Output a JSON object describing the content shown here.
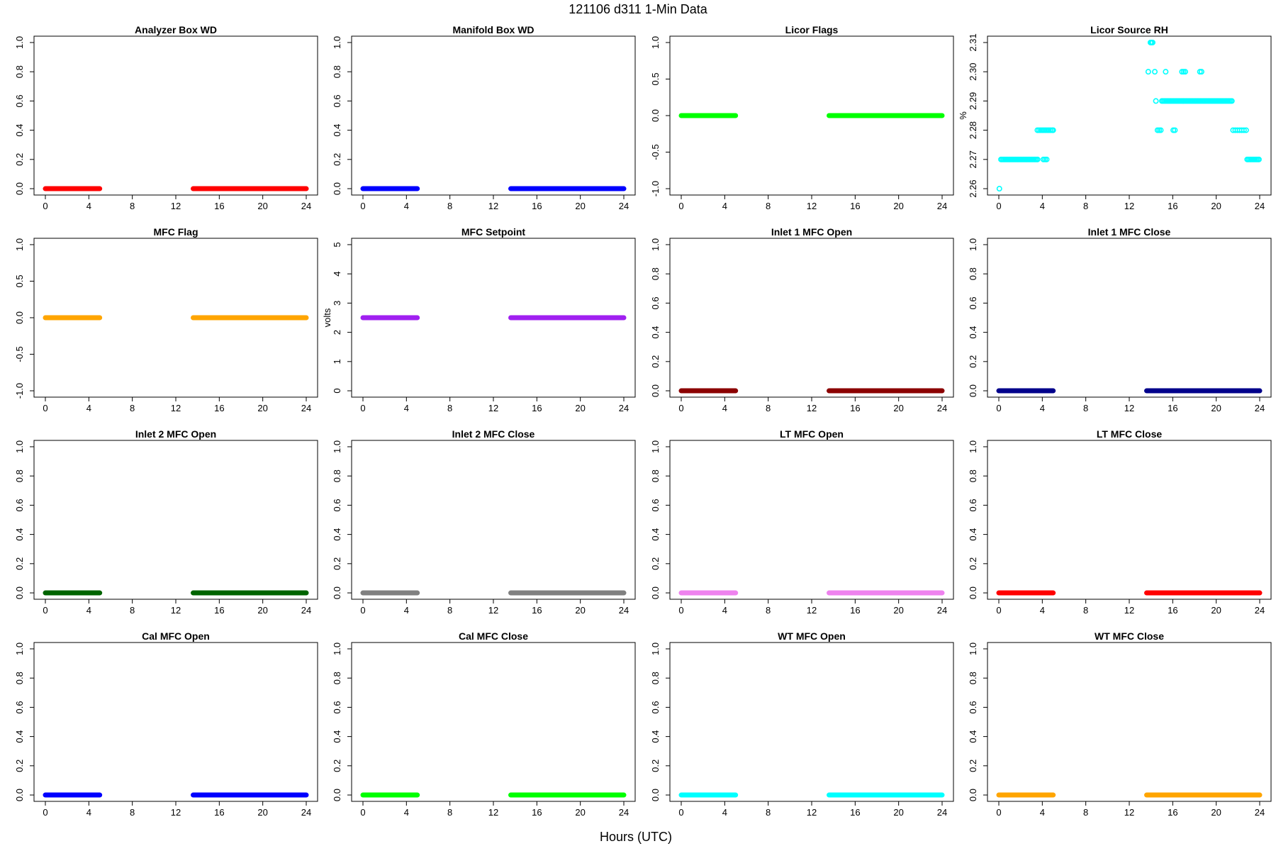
{
  "figure": {
    "title": "121106   d311   1-Min Data",
    "xlabel": "Hours (UTC)"
  },
  "chart_data": [
    {
      "type": "scatter",
      "title": "Analyzer Box WD",
      "ylabel": "",
      "color": "#ff0000",
      "ylim": [
        0,
        1
      ],
      "yticks": [
        "0.0",
        "0.2",
        "0.4",
        "0.6",
        "0.8",
        "1.0"
      ],
      "xlim": [
        0,
        24
      ],
      "xticks": [
        "0",
        "4",
        "8",
        "12",
        "16",
        "20",
        "24"
      ],
      "segments": [
        {
          "x": [
            0,
            5
          ],
          "y": 0
        },
        {
          "x": [
            13.6,
            24
          ],
          "y": 0
        }
      ]
    },
    {
      "type": "scatter",
      "title": "Manifold Box WD",
      "ylabel": "",
      "color": "#0000ff",
      "ylim": [
        0,
        1
      ],
      "yticks": [
        "0.0",
        "0.2",
        "0.4",
        "0.6",
        "0.8",
        "1.0"
      ],
      "xlim": [
        0,
        24
      ],
      "xticks": [
        "0",
        "4",
        "8",
        "12",
        "16",
        "20",
        "24"
      ],
      "segments": [
        {
          "x": [
            0,
            5
          ],
          "y": 0
        },
        {
          "x": [
            13.6,
            24
          ],
          "y": 0
        }
      ]
    },
    {
      "type": "scatter",
      "title": "Licor Flags",
      "ylabel": "",
      "color": "#00ff00",
      "ylim": [
        -1,
        1
      ],
      "yticks": [
        "-1.0",
        "-0.5",
        "0.0",
        "0.5",
        "1.0"
      ],
      "xlim": [
        0,
        24
      ],
      "xticks": [
        "0",
        "4",
        "8",
        "12",
        "16",
        "20",
        "24"
      ],
      "segments": [
        {
          "x": [
            0,
            5
          ],
          "y": 0
        },
        {
          "x": [
            13.6,
            24
          ],
          "y": 0
        }
      ]
    },
    {
      "type": "scatter",
      "title": "Licor Source RH",
      "ylabel": "%",
      "color": "#00ffff",
      "ylim": [
        2.26,
        2.31
      ],
      "yticks": [
        "2.26",
        "2.27",
        "2.28",
        "2.29",
        "2.30",
        "2.31"
      ],
      "xlim": [
        0,
        24
      ],
      "xticks": [
        "0",
        "4",
        "8",
        "12",
        "16",
        "20",
        "24"
      ],
      "points": [
        {
          "x": 0.05,
          "y": 2.26
        },
        {
          "x": 3.55,
          "y": 2.28
        },
        {
          "x": 3.7,
          "y": 2.28
        },
        {
          "x": 3.85,
          "y": 2.28
        },
        {
          "x": 4.0,
          "y": 2.28
        },
        {
          "x": 4.15,
          "y": 2.28
        },
        {
          "x": 4.3,
          "y": 2.28
        },
        {
          "x": 4.45,
          "y": 2.28
        },
        {
          "x": 4.6,
          "y": 2.28
        },
        {
          "x": 4.75,
          "y": 2.28
        },
        {
          "x": 4.9,
          "y": 2.28
        },
        {
          "x": 5.0,
          "y": 2.28
        },
        {
          "x": 4.1,
          "y": 2.27
        },
        {
          "x": 4.25,
          "y": 2.27
        },
        {
          "x": 4.4,
          "y": 2.27
        },
        {
          "x": 13.75,
          "y": 2.3
        },
        {
          "x": 13.95,
          "y": 2.31
        },
        {
          "x": 14.05,
          "y": 2.31
        },
        {
          "x": 14.15,
          "y": 2.31
        },
        {
          "x": 14.35,
          "y": 2.3
        },
        {
          "x": 14.45,
          "y": 2.29
        },
        {
          "x": 14.6,
          "y": 2.28
        },
        {
          "x": 14.75,
          "y": 2.28
        },
        {
          "x": 14.9,
          "y": 2.28
        },
        {
          "x": 15.35,
          "y": 2.3
        },
        {
          "x": 16.05,
          "y": 2.28
        },
        {
          "x": 16.2,
          "y": 2.28
        },
        {
          "x": 16.85,
          "y": 2.3
        },
        {
          "x": 17.0,
          "y": 2.3
        },
        {
          "x": 17.15,
          "y": 2.3
        },
        {
          "x": 18.5,
          "y": 2.3
        },
        {
          "x": 18.65,
          "y": 2.3
        },
        {
          "x": 21.55,
          "y": 2.28
        },
        {
          "x": 21.75,
          "y": 2.28
        },
        {
          "x": 21.95,
          "y": 2.28
        },
        {
          "x": 22.15,
          "y": 2.28
        },
        {
          "x": 22.35,
          "y": 2.28
        },
        {
          "x": 22.55,
          "y": 2.28
        },
        {
          "x": 22.75,
          "y": 2.28
        }
      ],
      "runs": [
        {
          "x": [
            0.2,
            3.6
          ],
          "y": 2.27
        },
        {
          "x": 15.0,
          "y": 2.29,
          "x_end": 17.0
        },
        {
          "x": 17.0,
          "y": 2.29,
          "x_end": 21.5
        },
        {
          "x": 22.85,
          "y": 2.27,
          "x_end": 24
        }
      ]
    },
    {
      "type": "scatter",
      "title": "MFC Flag",
      "ylabel": "",
      "color": "#ffa500",
      "ylim": [
        -1,
        1
      ],
      "yticks": [
        "-1.0",
        "-0.5",
        "0.0",
        "0.5",
        "1.0"
      ],
      "xlim": [
        0,
        24
      ],
      "xticks": [
        "0",
        "4",
        "8",
        "12",
        "16",
        "20",
        "24"
      ],
      "segments": [
        {
          "x": [
            0,
            5
          ],
          "y": 0
        },
        {
          "x": [
            13.6,
            24
          ],
          "y": 0
        }
      ]
    },
    {
      "type": "scatter",
      "title": "MFC Setpoint",
      "ylabel": "volts",
      "color": "#a020f0",
      "ylim": [
        0,
        5
      ],
      "yticks": [
        "0",
        "1",
        "2",
        "3",
        "4",
        "5"
      ],
      "xlim": [
        0,
        24
      ],
      "xticks": [
        "0",
        "4",
        "8",
        "12",
        "16",
        "20",
        "24"
      ],
      "segments": [
        {
          "x": [
            0,
            5
          ],
          "y": 2.5
        },
        {
          "x": [
            13.6,
            24
          ],
          "y": 2.5
        }
      ]
    },
    {
      "type": "scatter",
      "title": "Inlet 1 MFC Open",
      "ylabel": "",
      "color": "#8b0000",
      "ylim": [
        0,
        1
      ],
      "yticks": [
        "0.0",
        "0.2",
        "0.4",
        "0.6",
        "0.8",
        "1.0"
      ],
      "xlim": [
        0,
        24
      ],
      "xticks": [
        "0",
        "4",
        "8",
        "12",
        "16",
        "20",
        "24"
      ],
      "segments": [
        {
          "x": [
            0,
            5
          ],
          "y": 0
        },
        {
          "x": [
            13.6,
            24
          ],
          "y": 0
        }
      ]
    },
    {
      "type": "scatter",
      "title": "Inlet 1 MFC Close",
      "ylabel": "",
      "color": "#00008b",
      "ylim": [
        0,
        1
      ],
      "yticks": [
        "0.0",
        "0.2",
        "0.4",
        "0.6",
        "0.8",
        "1.0"
      ],
      "xlim": [
        0,
        24
      ],
      "xticks": [
        "0",
        "4",
        "8",
        "12",
        "16",
        "20",
        "24"
      ],
      "segments": [
        {
          "x": [
            0,
            5
          ],
          "y": 0
        },
        {
          "x": [
            13.6,
            24
          ],
          "y": 0
        }
      ]
    },
    {
      "type": "scatter",
      "title": "Inlet 2 MFC Open",
      "ylabel": "",
      "color": "#006400",
      "ylim": [
        0,
        1
      ],
      "yticks": [
        "0.0",
        "0.2",
        "0.4",
        "0.6",
        "0.8",
        "1.0"
      ],
      "xlim": [
        0,
        24
      ],
      "xticks": [
        "0",
        "4",
        "8",
        "12",
        "16",
        "20",
        "24"
      ],
      "segments": [
        {
          "x": [
            0,
            5
          ],
          "y": 0
        },
        {
          "x": [
            13.6,
            24
          ],
          "y": 0
        }
      ]
    },
    {
      "type": "scatter",
      "title": "Inlet 2 MFC Close",
      "ylabel": "",
      "color": "#808080",
      "ylim": [
        0,
        1
      ],
      "yticks": [
        "0.0",
        "0.2",
        "0.4",
        "0.6",
        "0.8",
        "1.0"
      ],
      "xlim": [
        0,
        24
      ],
      "xticks": [
        "0",
        "4",
        "8",
        "12",
        "16",
        "20",
        "24"
      ],
      "segments": [
        {
          "x": [
            0,
            5
          ],
          "y": 0
        },
        {
          "x": [
            13.6,
            24
          ],
          "y": 0
        }
      ]
    },
    {
      "type": "scatter",
      "title": "LT MFC Open",
      "ylabel": "",
      "color": "#ee82ee",
      "ylim": [
        0,
        1
      ],
      "yticks": [
        "0.0",
        "0.2",
        "0.4",
        "0.6",
        "0.8",
        "1.0"
      ],
      "xlim": [
        0,
        24
      ],
      "xticks": [
        "0",
        "4",
        "8",
        "12",
        "16",
        "20",
        "24"
      ],
      "segments": [
        {
          "x": [
            0,
            5
          ],
          "y": 0
        },
        {
          "x": [
            13.6,
            24
          ],
          "y": 0
        }
      ]
    },
    {
      "type": "scatter",
      "title": "LT MFC Close",
      "ylabel": "",
      "color": "#ff0000",
      "ylim": [
        0,
        1
      ],
      "yticks": [
        "0.0",
        "0.2",
        "0.4",
        "0.6",
        "0.8",
        "1.0"
      ],
      "xlim": [
        0,
        24
      ],
      "xticks": [
        "0",
        "4",
        "8",
        "12",
        "16",
        "20",
        "24"
      ],
      "segments": [
        {
          "x": [
            0,
            5
          ],
          "y": 0
        },
        {
          "x": [
            13.6,
            24
          ],
          "y": 0
        }
      ]
    },
    {
      "type": "scatter",
      "title": "Cal MFC Open",
      "ylabel": "",
      "color": "#0000ff",
      "ylim": [
        0,
        1
      ],
      "yticks": [
        "0.0",
        "0.2",
        "0.4",
        "0.6",
        "0.8",
        "1.0"
      ],
      "xlim": [
        0,
        24
      ],
      "xticks": [
        "0",
        "4",
        "8",
        "12",
        "16",
        "20",
        "24"
      ],
      "segments": [
        {
          "x": [
            0,
            5
          ],
          "y": 0
        },
        {
          "x": [
            13.6,
            24
          ],
          "y": 0
        }
      ]
    },
    {
      "type": "scatter",
      "title": "Cal MFC Close",
      "ylabel": "",
      "color": "#00ff00",
      "ylim": [
        0,
        1
      ],
      "yticks": [
        "0.0",
        "0.2",
        "0.4",
        "0.6",
        "0.8",
        "1.0"
      ],
      "xlim": [
        0,
        24
      ],
      "xticks": [
        "0",
        "4",
        "8",
        "12",
        "16",
        "20",
        "24"
      ],
      "segments": [
        {
          "x": [
            0,
            5
          ],
          "y": 0
        },
        {
          "x": [
            13.6,
            24
          ],
          "y": 0
        }
      ]
    },
    {
      "type": "scatter",
      "title": "WT MFC Open",
      "ylabel": "",
      "color": "#00ffff",
      "ylim": [
        0,
        1
      ],
      "yticks": [
        "0.0",
        "0.2",
        "0.4",
        "0.6",
        "0.8",
        "1.0"
      ],
      "xlim": [
        0,
        24
      ],
      "xticks": [
        "0",
        "4",
        "8",
        "12",
        "16",
        "20",
        "24"
      ],
      "segments": [
        {
          "x": [
            0,
            5
          ],
          "y": 0
        },
        {
          "x": [
            13.6,
            24
          ],
          "y": 0
        }
      ]
    },
    {
      "type": "scatter",
      "title": "WT MFC Close",
      "ylabel": "",
      "color": "#ffa500",
      "ylim": [
        0,
        1
      ],
      "yticks": [
        "0.0",
        "0.2",
        "0.4",
        "0.6",
        "0.8",
        "1.0"
      ],
      "xlim": [
        0,
        24
      ],
      "xticks": [
        "0",
        "4",
        "8",
        "12",
        "16",
        "20",
        "24"
      ],
      "segments": [
        {
          "x": [
            0,
            5
          ],
          "y": 0
        },
        {
          "x": [
            13.6,
            24
          ],
          "y": 0
        }
      ]
    }
  ]
}
